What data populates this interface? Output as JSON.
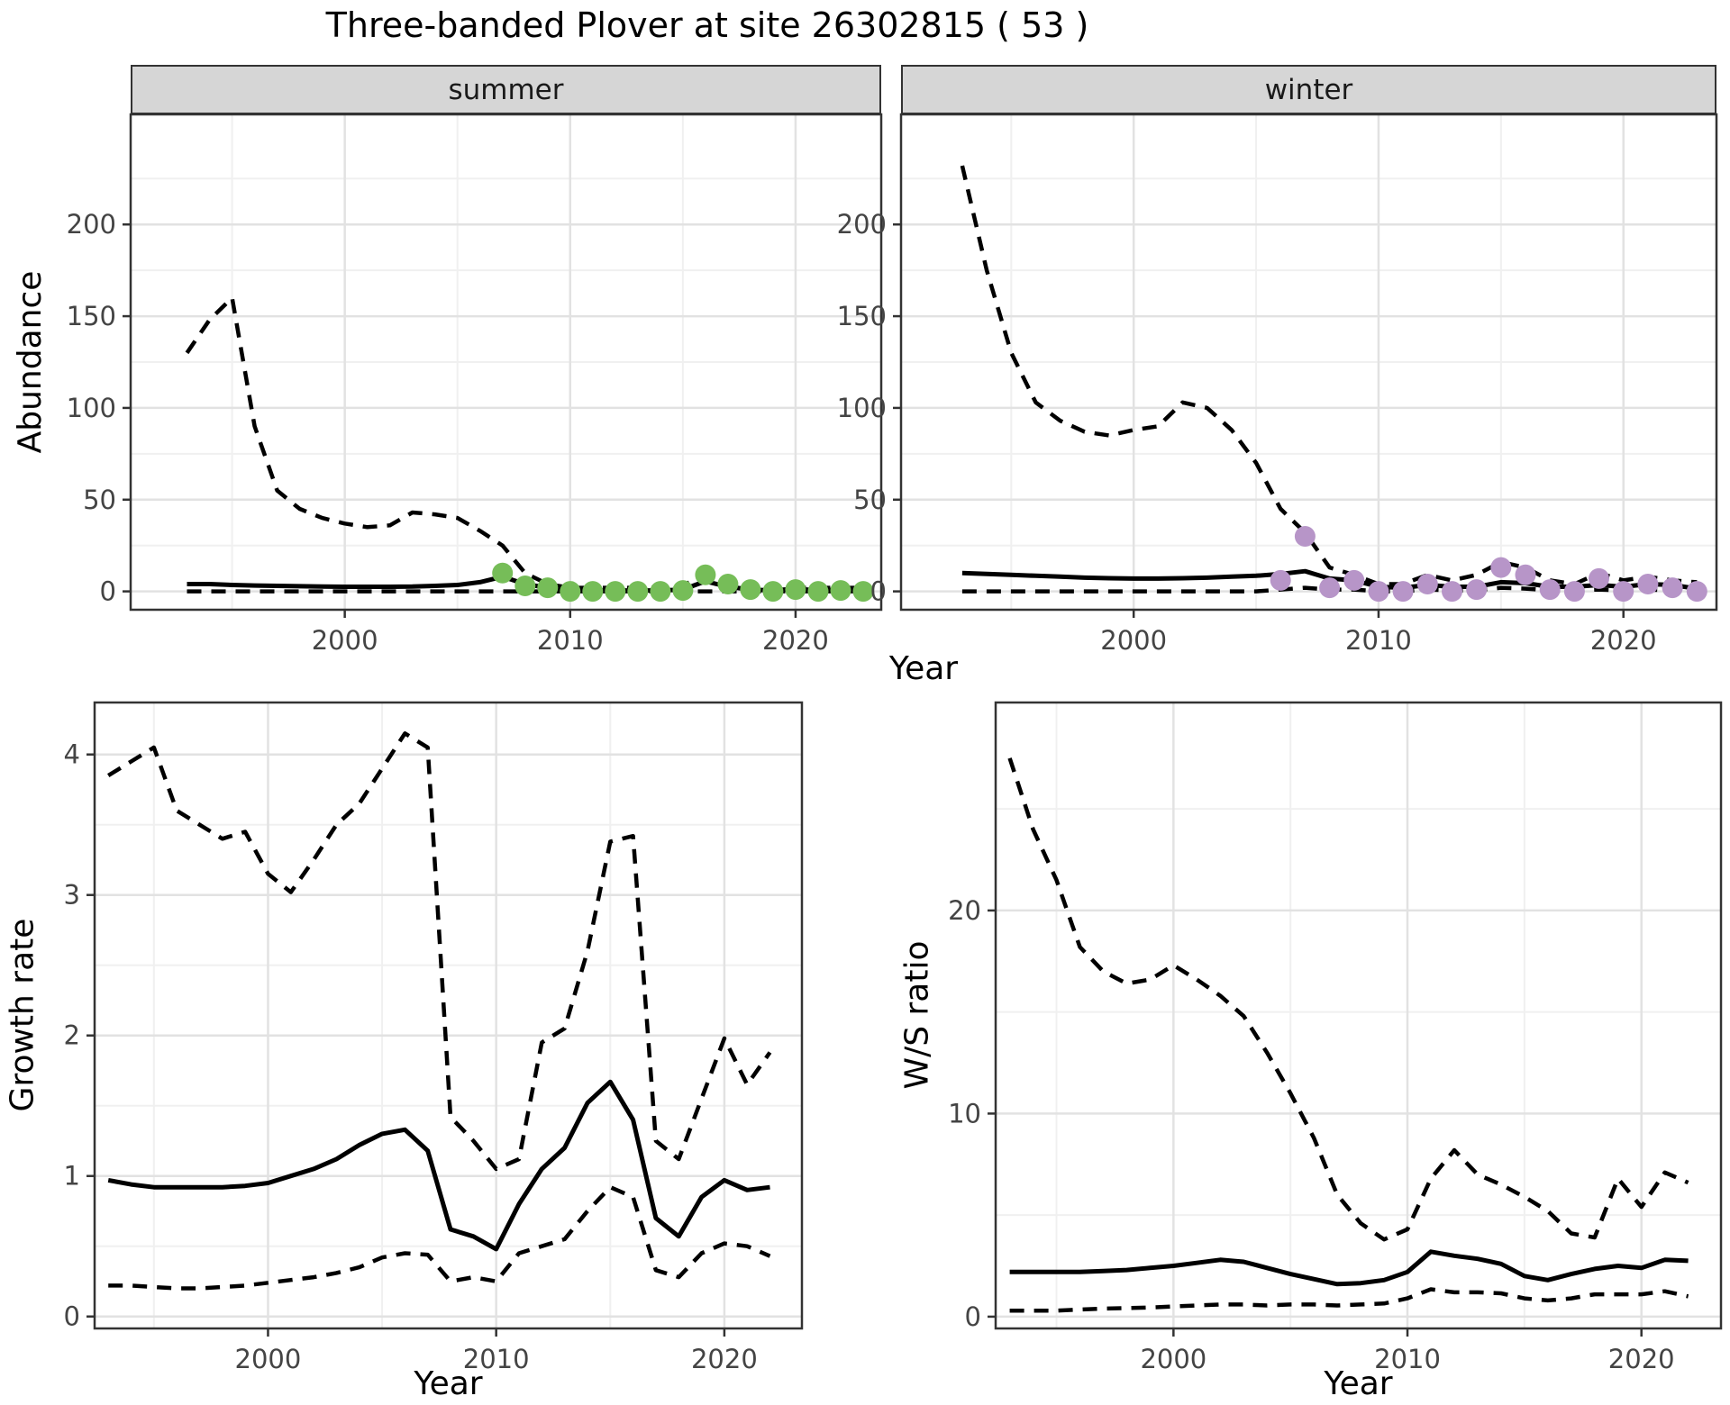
{
  "title": "Three-banded Plover at site 26302815 ( 53 )",
  "facets": {
    "summer": "summer",
    "winter": "winter"
  },
  "axes": {
    "abundance": "Abundance",
    "year": "Year",
    "growth": "Growth rate",
    "ws": "W/S ratio"
  },
  "colors": {
    "summer_points": "#76BD58",
    "winter_points": "#B795C8",
    "line": "#000000",
    "strip_bg": "#D6D6D6",
    "grid_major": "#E2E2E2",
    "grid_minor": "#F0F0F0",
    "border": "#333333",
    "tick_text": "#444444"
  },
  "chart_data": [
    {
      "id": "abundance-summer",
      "type": "line",
      "facet": "summer",
      "ylabel": "Abundance",
      "xlabel": "Year",
      "xlim": [
        1990.5,
        2023.8
      ],
      "ylim": [
        -10,
        260
      ],
      "xticks": [
        2000,
        2010,
        2020
      ],
      "xminor": [
        1995,
        2005,
        2015
      ],
      "yticks": [
        0,
        50,
        100,
        150,
        200
      ],
      "yminor": [
        25,
        75,
        125,
        175,
        225
      ],
      "x": [
        1993,
        1994,
        1995,
        1996,
        1997,
        1998,
        1999,
        2000,
        2001,
        2002,
        2003,
        2004,
        2005,
        2006,
        2007,
        2008,
        2009,
        2010,
        2011,
        2012,
        2013,
        2014,
        2015,
        2016,
        2017,
        2018,
        2019,
        2020,
        2021,
        2022,
        2023
      ],
      "series": [
        {
          "name": "upper_ci",
          "style": "dashed",
          "values": [
            130,
            148,
            160,
            90,
            55,
            45,
            40,
            37,
            35,
            36,
            43,
            42,
            40,
            33,
            25,
            10,
            4,
            2,
            2,
            2,
            2,
            2,
            3,
            10,
            5,
            2,
            2,
            2,
            2,
            2,
            2
          ]
        },
        {
          "name": "mean",
          "style": "solid",
          "values": [
            4,
            4,
            3.5,
            3.2,
            3,
            2.8,
            2.6,
            2.5,
            2.5,
            2.5,
            2.6,
            3,
            3.5,
            5,
            8,
            4,
            2,
            1,
            0.5,
            0.5,
            0.5,
            0.5,
            1,
            5.5,
            2.5,
            1,
            0.5,
            1.5,
            0.5,
            1,
            0.5
          ]
        },
        {
          "name": "lower_ci",
          "style": "dashed",
          "values": [
            0,
            0,
            0,
            0,
            0,
            0,
            0,
            0,
            0,
            0,
            0,
            0,
            0,
            0,
            0,
            0,
            0,
            0,
            0,
            0,
            0,
            0,
            0,
            0,
            0,
            0,
            0,
            0,
            0,
            0,
            0
          ]
        }
      ],
      "points": {
        "color_key": "summer_points",
        "years": [
          2007,
          2008,
          2009,
          2010,
          2011,
          2012,
          2013,
          2014,
          2015,
          2016,
          2017,
          2018,
          2019,
          2020,
          2021,
          2022,
          2023
        ],
        "values": [
          10,
          3,
          2,
          0,
          0,
          0,
          0,
          0,
          0.5,
          9,
          4,
          1,
          0,
          1,
          0,
          0.5,
          0
        ]
      }
    },
    {
      "id": "abundance-winter",
      "type": "line",
      "facet": "winter",
      "ylabel": "Abundance",
      "xlabel": "Year",
      "xlim": [
        1990.5,
        2023.8
      ],
      "ylim": [
        -10,
        260
      ],
      "xticks": [
        2000,
        2010,
        2020
      ],
      "xminor": [
        1995,
        2005,
        2015
      ],
      "yticks": [
        0,
        50,
        100,
        150,
        200
      ],
      "yminor": [
        25,
        75,
        125,
        175,
        225
      ],
      "x": [
        1993,
        1994,
        1995,
        1996,
        1997,
        1998,
        1999,
        2000,
        2001,
        2002,
        2003,
        2004,
        2005,
        2006,
        2007,
        2008,
        2009,
        2010,
        2011,
        2012,
        2013,
        2014,
        2015,
        2016,
        2017,
        2018,
        2019,
        2020,
        2021,
        2022,
        2023
      ],
      "series": [
        {
          "name": "upper_ci",
          "style": "dashed",
          "values": [
            232,
            175,
            130,
            103,
            93,
            87,
            85,
            88,
            90,
            103,
            100,
            88,
            70,
            45,
            32,
            13,
            9,
            4,
            4,
            9,
            6,
            9,
            16,
            13,
            6,
            4,
            10,
            6,
            8,
            6,
            5
          ]
        },
        {
          "name": "mean",
          "style": "solid",
          "values": [
            10,
            9.5,
            9,
            8.5,
            8,
            7.5,
            7.2,
            7,
            7,
            7.2,
            7.5,
            8,
            8.5,
            9.5,
            11,
            7,
            6,
            2.5,
            2,
            3.5,
            2.5,
            2.5,
            5,
            4.5,
            2.5,
            2.5,
            3.5,
            2.5,
            4,
            3.5,
            1.5
          ]
        },
        {
          "name": "lower_ci",
          "style": "dashed",
          "values": [
            0,
            0,
            0,
            0,
            0,
            0,
            0,
            0,
            0,
            0,
            0,
            0,
            0,
            1,
            2,
            1,
            1,
            0,
            0,
            1,
            0.5,
            0.5,
            2,
            1.5,
            0.5,
            0.5,
            1,
            0.5,
            1,
            0.5,
            0
          ]
        }
      ],
      "points": {
        "color_key": "winter_points",
        "years": [
          2006,
          2007,
          2008,
          2009,
          2010,
          2011,
          2012,
          2013,
          2014,
          2015,
          2016,
          2017,
          2018,
          2019,
          2020,
          2021,
          2022,
          2023
        ],
        "values": [
          6,
          30,
          2,
          6,
          0,
          0,
          4,
          0,
          1,
          13,
          9,
          1,
          0,
          7,
          0,
          4,
          2,
          0
        ]
      }
    },
    {
      "id": "growth-rate",
      "type": "line",
      "ylabel": "Growth rate",
      "xlabel": "Year",
      "xlim": [
        1992.4,
        2023.4
      ],
      "ylim": [
        -0.085,
        4.37
      ],
      "xticks": [
        2000,
        2010,
        2020
      ],
      "xminor": [
        1995,
        2005,
        2015
      ],
      "yticks": [
        0,
        1,
        2,
        3,
        4
      ],
      "yminor": [
        0.5,
        1.5,
        2.5,
        3.5
      ],
      "x": [
        1993,
        1994,
        1995,
        1996,
        1997,
        1998,
        1999,
        2000,
        2001,
        2002,
        2003,
        2004,
        2005,
        2006,
        2007,
        2008,
        2009,
        2010,
        2011,
        2012,
        2013,
        2014,
        2015,
        2016,
        2017,
        2018,
        2019,
        2020,
        2021,
        2022
      ],
      "series": [
        {
          "name": "upper_ci",
          "style": "dashed",
          "values": [
            3.85,
            3.95,
            4.05,
            3.6,
            3.5,
            3.4,
            3.45,
            3.15,
            3.02,
            3.25,
            3.5,
            3.65,
            3.9,
            4.15,
            4.05,
            1.42,
            1.25,
            1.05,
            1.12,
            1.95,
            2.05,
            2.6,
            3.38,
            3.42,
            1.25,
            1.12,
            1.55,
            1.98,
            1.65,
            1.88
          ]
        },
        {
          "name": "mean",
          "style": "solid",
          "values": [
            0.97,
            0.94,
            0.92,
            0.92,
            0.92,
            0.92,
            0.93,
            0.95,
            1.0,
            1.05,
            1.12,
            1.22,
            1.3,
            1.33,
            1.18,
            0.62,
            0.57,
            0.48,
            0.8,
            1.05,
            1.2,
            1.52,
            1.67,
            1.4,
            0.7,
            0.57,
            0.85,
            0.97,
            0.9,
            0.92
          ]
        },
        {
          "name": "lower_ci",
          "style": "dashed",
          "values": [
            0.22,
            0.22,
            0.21,
            0.2,
            0.2,
            0.21,
            0.22,
            0.24,
            0.26,
            0.28,
            0.31,
            0.35,
            0.42,
            0.45,
            0.44,
            0.25,
            0.28,
            0.25,
            0.45,
            0.5,
            0.55,
            0.75,
            0.92,
            0.85,
            0.33,
            0.28,
            0.45,
            0.52,
            0.5,
            0.43
          ]
        }
      ]
    },
    {
      "id": "ws-ratio",
      "type": "line",
      "ylabel": "W/S ratio",
      "xlabel": "Year",
      "xlim": [
        1992.4,
        2023.4
      ],
      "ylim": [
        -0.58,
        30.24
      ],
      "xticks": [
        2000,
        2010,
        2020
      ],
      "xminor": [
        1995,
        2005,
        2015
      ],
      "yticks": [
        0,
        10,
        20
      ],
      "yminor": [
        5,
        15,
        25
      ],
      "x": [
        1993,
        1994,
        1995,
        1996,
        1997,
        1998,
        1999,
        2000,
        2001,
        2002,
        2003,
        2004,
        2005,
        2006,
        2007,
        2008,
        2009,
        2010,
        2011,
        2012,
        2013,
        2014,
        2015,
        2016,
        2017,
        2018,
        2019,
        2020,
        2021,
        2022
      ],
      "series": [
        {
          "name": "upper_ci",
          "style": "dashed",
          "values": [
            27.5,
            24,
            21.5,
            18.2,
            17,
            16.4,
            16.6,
            17.3,
            16.6,
            15.8,
            14.8,
            13,
            11,
            8.8,
            6,
            4.6,
            3.8,
            4.3,
            6.8,
            8.2,
            7,
            6.5,
            5.9,
            5.2,
            4.1,
            3.9,
            6.8,
            5.4,
            7.1,
            6.6
          ]
        },
        {
          "name": "mean",
          "style": "solid",
          "values": [
            2.2,
            2.2,
            2.2,
            2.2,
            2.25,
            2.3,
            2.4,
            2.5,
            2.65,
            2.8,
            2.7,
            2.4,
            2.1,
            1.85,
            1.6,
            1.65,
            1.8,
            2.2,
            3.2,
            3.0,
            2.85,
            2.6,
            2.0,
            1.8,
            2.1,
            2.35,
            2.5,
            2.4,
            2.8,
            2.75
          ]
        },
        {
          "name": "lower_ci",
          "style": "dashed",
          "values": [
            0.3,
            0.3,
            0.3,
            0.35,
            0.4,
            0.42,
            0.45,
            0.5,
            0.55,
            0.6,
            0.6,
            0.55,
            0.6,
            0.6,
            0.55,
            0.6,
            0.65,
            0.9,
            1.35,
            1.2,
            1.2,
            1.15,
            0.9,
            0.8,
            0.9,
            1.1,
            1.1,
            1.1,
            1.25,
            1.0
          ]
        }
      ]
    }
  ]
}
